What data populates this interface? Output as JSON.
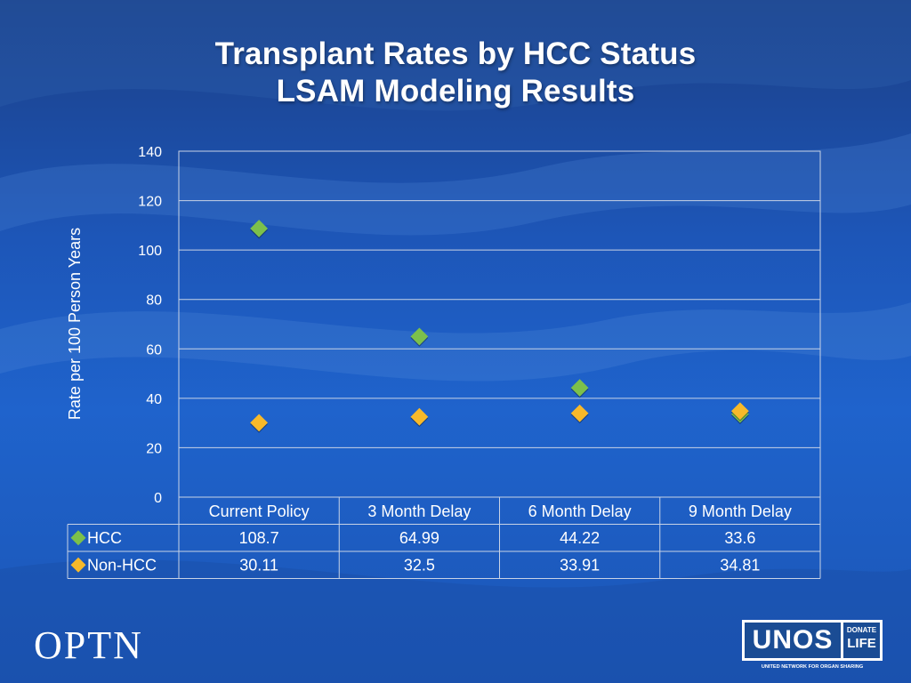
{
  "title": {
    "line1": "Transplant Rates by HCC Status",
    "line2": "LSAM Modeling Results"
  },
  "colors": {
    "hcc": "#7cc04b",
    "non_hcc": "#f7b92a",
    "gridline": "#c8d3e6"
  },
  "chart_data": {
    "type": "scatter",
    "categories": [
      "Current Policy",
      "3 Month Delay",
      "6 Month Delay",
      "9 Month Delay"
    ],
    "series": [
      {
        "name": "HCC",
        "values": [
          108.7,
          64.99,
          44.22,
          33.6
        ],
        "labels": [
          "108.7",
          "64.99",
          "44.22",
          "33.6"
        ]
      },
      {
        "name": "Non-HCC",
        "values": [
          30.11,
          32.5,
          33.91,
          34.81
        ],
        "labels": [
          "30.11",
          "32.5",
          "33.91",
          "34.81"
        ]
      }
    ],
    "ylabel": "Rate per 100 Person Years",
    "ylim": [
      0,
      140
    ],
    "yticks": [
      "0",
      "20",
      "40",
      "60",
      "80",
      "100",
      "120",
      "140"
    ],
    "grid": true,
    "data_table": true
  },
  "footer": {
    "optn_logo": "OPTN",
    "unos_logo": "UNOS",
    "donate_life_line1": "DONATE",
    "donate_life_line2": "LIFE",
    "unos_tagline": "UNITED NETWORK FOR ORGAN SHARING"
  }
}
